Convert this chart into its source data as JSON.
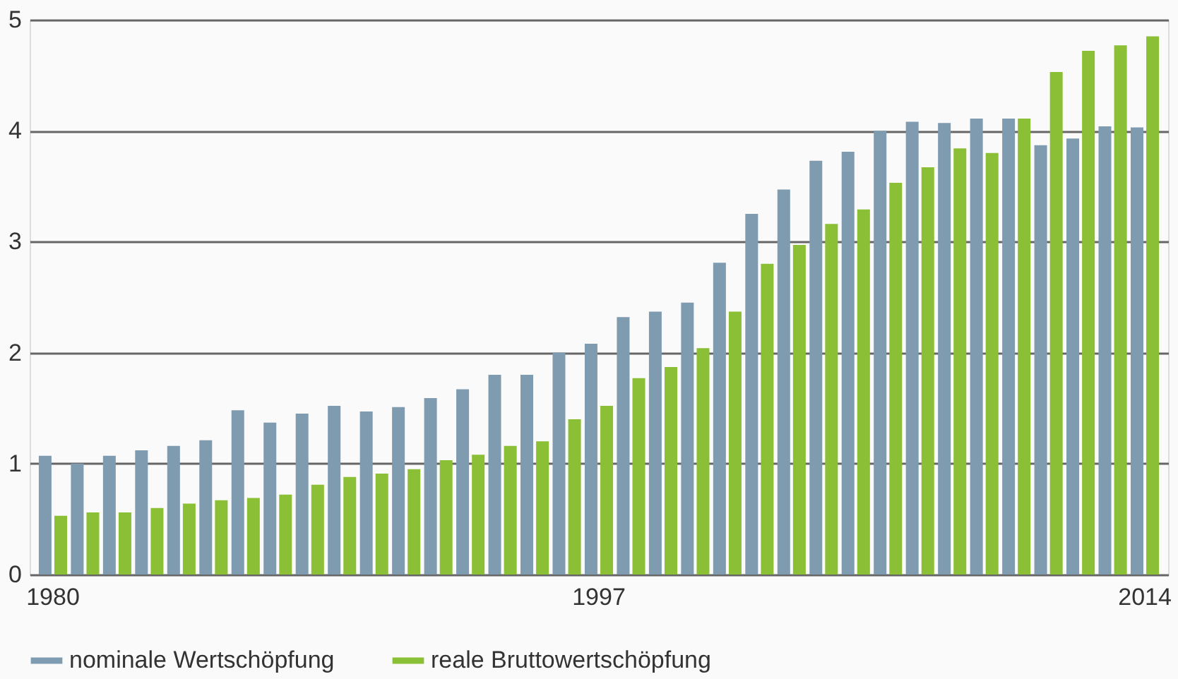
{
  "chart_data": {
    "type": "bar",
    "categories": [
      "1980",
      null,
      null,
      null,
      null,
      null,
      null,
      null,
      null,
      null,
      null,
      null,
      null,
      null,
      null,
      null,
      null,
      "1997",
      null,
      null,
      null,
      null,
      null,
      null,
      null,
      null,
      null,
      null,
      null,
      null,
      null,
      null,
      null,
      null,
      "2014"
    ],
    "series": [
      {
        "name": "nominale Wertschöpfung",
        "color": "#7f9bb0",
        "values": [
          1.07,
          1.0,
          1.07,
          1.12,
          1.16,
          1.21,
          1.48,
          1.37,
          1.45,
          1.52,
          1.47,
          1.51,
          1.59,
          1.67,
          1.8,
          1.8,
          2.0,
          2.08,
          2.32,
          2.37,
          2.45,
          2.81,
          3.25,
          3.47,
          3.73,
          3.81,
          4.0,
          4.08,
          4.07,
          4.11,
          4.11,
          3.87,
          3.93,
          4.04,
          4.03
        ]
      },
      {
        "name": "reale Bruttowertschöpfung",
        "color": "#8bbf35",
        "values": [
          0.53,
          0.56,
          0.56,
          0.6,
          0.64,
          0.67,
          0.69,
          0.72,
          0.81,
          0.88,
          0.91,
          0.95,
          1.03,
          1.08,
          1.16,
          1.2,
          1.4,
          1.52,
          1.77,
          1.87,
          2.04,
          2.37,
          2.8,
          2.97,
          3.16,
          3.29,
          3.53,
          3.67,
          3.84,
          3.8,
          4.11,
          4.53,
          4.72,
          4.77,
          4.85
        ]
      }
    ],
    "ylim": [
      0,
      5
    ],
    "yticks": [
      0,
      1,
      2,
      3,
      4,
      5
    ],
    "grid": "y",
    "legend": "bottom left"
  }
}
